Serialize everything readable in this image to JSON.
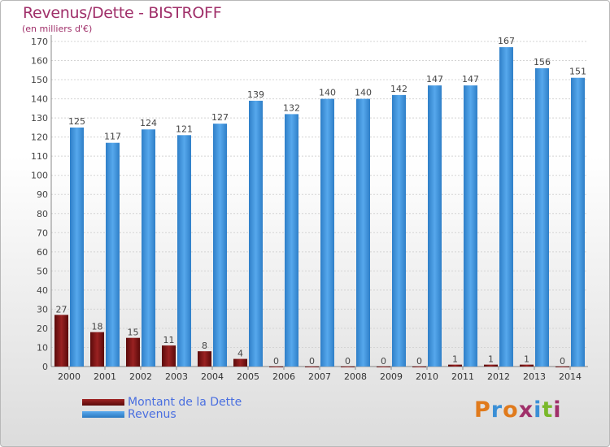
{
  "chart_data": {
    "type": "bar",
    "title": "Revenus/Dette - BISTROFF",
    "subtitle": "(en milliers d'€)",
    "categories": [
      "2000",
      "2001",
      "2002",
      "2003",
      "2004",
      "2005",
      "2006",
      "2007",
      "2008",
      "2009",
      "2010",
      "2011",
      "2012",
      "2013",
      "2014"
    ],
    "series": [
      {
        "name": "Montant de la Dette",
        "color": "#7a1414",
        "values": [
          27,
          18,
          15,
          11,
          8,
          4,
          0,
          0,
          0,
          0,
          0,
          1,
          1,
          1,
          0
        ]
      },
      {
        "name": "Revenus",
        "color": "#3a8fd6",
        "values": [
          125,
          117,
          124,
          121,
          127,
          139,
          132,
          140,
          140,
          142,
          147,
          147,
          167,
          156,
          151
        ]
      }
    ],
    "ylim": [
      0,
      170
    ],
    "yticks": [
      0,
      10,
      20,
      30,
      40,
      50,
      60,
      70,
      80,
      90,
      100,
      110,
      120,
      130,
      140,
      150,
      160,
      170
    ],
    "grid": true,
    "legend_position": "bottom-left"
  },
  "branding": {
    "logo_text": "Proxiti",
    "logo_colors": [
      "#e07a1c",
      "#3a8fd6",
      "#e07a1c",
      "#a0306a",
      "#3a8fd6",
      "#7ab82a",
      "#a0306a"
    ]
  }
}
